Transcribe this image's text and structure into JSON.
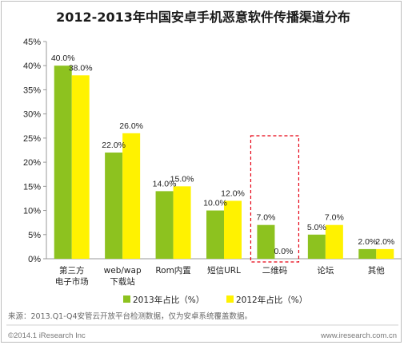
{
  "chart_data": {
    "type": "bar",
    "title": "2012-2013年中国安卓手机恶意软件传播渠道分布",
    "categories": [
      "第三方\n电子市场",
      "web/wap\n下载站",
      "Rom内置",
      "短信URL",
      "二维码",
      "论坛",
      "其他"
    ],
    "series": [
      {
        "name": "2013年占比（%）",
        "values": [
          40.0,
          22.0,
          14.0,
          10.0,
          7.0,
          5.0,
          2.0
        ],
        "labels": [
          "40.0%",
          "22.0%",
          "14.0%",
          "10.0%",
          "7.0%",
          "5.0%",
          "2.0%"
        ]
      },
      {
        "name": "2012年占比（%）",
        "values": [
          38.0,
          26.0,
          15.0,
          12.0,
          0.0,
          7.0,
          2.0
        ],
        "labels": [
          "38.0%",
          "26.0%",
          "15.0%",
          "12.0%",
          "0.0%",
          "7.0%",
          "2.0%"
        ]
      }
    ],
    "ylim": [
      0,
      45
    ],
    "yticks": [
      "0%",
      "5%",
      "10%",
      "15%",
      "20%",
      "25%",
      "30%",
      "35%",
      "40%",
      "45%"
    ],
    "grid": false,
    "legend": "bottom",
    "highlight_category": "二维码",
    "xlabel": "",
    "ylabel": ""
  },
  "colors": {
    "series_2013": "#8dc21f",
    "series_2012": "#fff200",
    "axis": "#999999",
    "highlight": "#e60012"
  },
  "source_note": "来源：2013.Q1-Q4安管云开放平台检测数据，仅为安卓系统覆盖数据。",
  "footer_left": "©2014.1 iResearch Inc",
  "footer_right": "www.iresearch.com.cn"
}
